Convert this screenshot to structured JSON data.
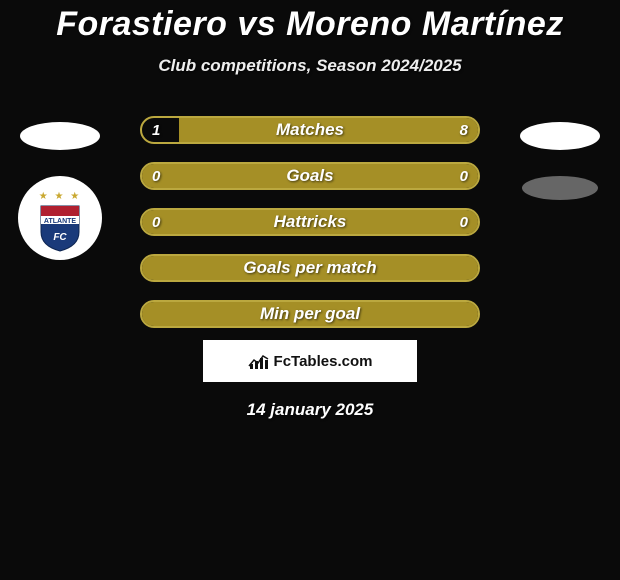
{
  "title": "Forastiero vs Moreno Martínez",
  "subtitle": "Club competitions, Season 2024/2025",
  "date": "14 january 2025",
  "watermark_text": "FcTables.com",
  "badge_text": "ATLANTE",
  "colors": {
    "accent": "#a58f26",
    "accent_border": "#bba83f",
    "fill_right": "#a58f26",
    "background": "#0a0a0a"
  },
  "stats": [
    {
      "label": "Matches",
      "left_value": "1",
      "right_value": "8",
      "left_pct": 11,
      "right_pct": 89,
      "show_fills": true
    },
    {
      "label": "Goals",
      "left_value": "0",
      "right_value": "0",
      "left_pct": 0,
      "right_pct": 0,
      "show_fills": false
    },
    {
      "label": "Hattricks",
      "left_value": "0",
      "right_value": "0",
      "left_pct": 0,
      "right_pct": 0,
      "show_fills": false
    },
    {
      "label": "Goals per match",
      "left_value": "",
      "right_value": "",
      "left_pct": 0,
      "right_pct": 0,
      "show_fills": false
    },
    {
      "label": "Min per goal",
      "left_value": "",
      "right_value": "",
      "left_pct": 0,
      "right_pct": 0,
      "show_fills": false
    }
  ]
}
